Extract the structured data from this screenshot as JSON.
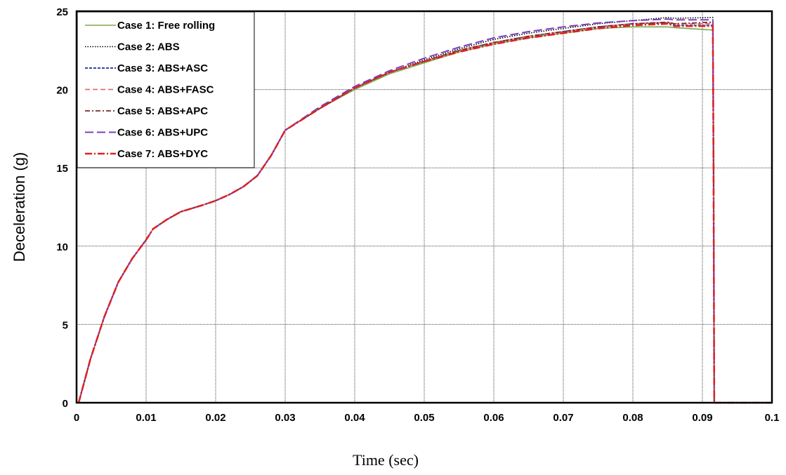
{
  "chart_data": {
    "type": "line",
    "title": "",
    "xlabel": "Time (sec)",
    "ylabel": "Deceleration (g)",
    "xlim": [
      0,
      0.1
    ],
    "ylim": [
      0,
      25
    ],
    "x_ticks": [
      "0",
      "0.01",
      "0.02",
      "0.03",
      "0.04",
      "0.05",
      "0.06",
      "0.07",
      "0.08",
      "0.09",
      "0.1"
    ],
    "y_ticks": [
      "0",
      "5",
      "10",
      "15",
      "20",
      "25"
    ],
    "grid": true,
    "legend_position": "top-left",
    "series": [
      {
        "name": "Case 1: Free rolling",
        "color": "#77a94a",
        "dash": "solid",
        "x": [
          0.0003,
          0.002,
          0.004,
          0.006,
          0.008,
          0.01,
          0.011,
          0.013,
          0.015,
          0.018,
          0.02,
          0.022,
          0.024,
          0.026,
          0.028,
          0.03,
          0.035,
          0.04,
          0.045,
          0.05,
          0.055,
          0.06,
          0.065,
          0.07,
          0.075,
          0.08,
          0.085,
          0.086,
          0.0915,
          0.0916,
          0.0917,
          0.1
        ],
        "y": [
          0,
          2.8,
          5.5,
          7.7,
          9.2,
          10.4,
          11.1,
          11.7,
          12.2,
          12.6,
          12.9,
          13.3,
          13.8,
          14.5,
          15.8,
          17.4,
          18.8,
          20.0,
          21.0,
          21.7,
          22.4,
          22.9,
          23.3,
          23.6,
          23.9,
          24.0,
          24.0,
          23.95,
          23.8,
          15.0,
          0,
          0
        ]
      },
      {
        "name": "Case 2: ABS",
        "color": "#000000",
        "dash": "dotted",
        "x": [
          0.0003,
          0.002,
          0.004,
          0.006,
          0.008,
          0.01,
          0.011,
          0.013,
          0.015,
          0.018,
          0.02,
          0.022,
          0.024,
          0.026,
          0.028,
          0.03,
          0.035,
          0.04,
          0.045,
          0.05,
          0.055,
          0.06,
          0.065,
          0.07,
          0.075,
          0.08,
          0.085,
          0.086,
          0.0915,
          0.0916,
          0.0917,
          0.1
        ],
        "y": [
          0,
          2.8,
          5.5,
          7.7,
          9.2,
          10.4,
          11.1,
          11.7,
          12.2,
          12.6,
          12.9,
          13.3,
          13.8,
          14.5,
          15.8,
          17.4,
          18.8,
          20.1,
          21.1,
          21.9,
          22.6,
          23.2,
          23.6,
          23.9,
          24.2,
          24.4,
          24.6,
          24.55,
          24.6,
          15.0,
          0,
          0
        ]
      },
      {
        "name": "Case 3: ABS+ASC",
        "color": "#2e4aa0",
        "dash": "dashed-short",
        "x": [
          0.0003,
          0.002,
          0.004,
          0.006,
          0.008,
          0.01,
          0.011,
          0.013,
          0.015,
          0.018,
          0.02,
          0.022,
          0.024,
          0.026,
          0.028,
          0.03,
          0.035,
          0.04,
          0.045,
          0.05,
          0.055,
          0.06,
          0.065,
          0.07,
          0.075,
          0.08,
          0.085,
          0.086,
          0.0915,
          0.0916,
          0.0917,
          0.1
        ],
        "y": [
          0,
          2.8,
          5.5,
          7.7,
          9.2,
          10.4,
          11.1,
          11.7,
          12.2,
          12.6,
          12.9,
          13.3,
          13.8,
          14.5,
          15.8,
          17.4,
          18.8,
          20.1,
          21.1,
          21.8,
          22.5,
          23.0,
          23.4,
          23.7,
          24.0,
          24.2,
          24.25,
          24.1,
          24.1,
          15.0,
          0,
          0
        ]
      },
      {
        "name": "Case 4: ABS+FASC",
        "color": "#e07070",
        "dash": "dashed",
        "x": [
          0.0003,
          0.002,
          0.004,
          0.006,
          0.008,
          0.01,
          0.011,
          0.013,
          0.015,
          0.018,
          0.02,
          0.022,
          0.024,
          0.026,
          0.028,
          0.03,
          0.035,
          0.04,
          0.045,
          0.05,
          0.055,
          0.06,
          0.065,
          0.07,
          0.075,
          0.08,
          0.085,
          0.086,
          0.0915,
          0.0916,
          0.0917,
          0.1
        ],
        "y": [
          0,
          2.8,
          5.5,
          7.7,
          9.2,
          10.4,
          11.1,
          11.7,
          12.2,
          12.6,
          12.9,
          13.3,
          13.8,
          14.5,
          15.8,
          17.4,
          18.8,
          20.1,
          21.1,
          21.8,
          22.5,
          23.0,
          23.4,
          23.7,
          24.0,
          24.2,
          24.3,
          24.2,
          24.2,
          15.0,
          0,
          0
        ]
      },
      {
        "name": "Case 5: ABS+APC",
        "color": "#7a2a2a",
        "dash": "dash-dot",
        "x": [
          0.0003,
          0.002,
          0.004,
          0.006,
          0.008,
          0.01,
          0.011,
          0.013,
          0.015,
          0.018,
          0.02,
          0.022,
          0.024,
          0.026,
          0.028,
          0.03,
          0.035,
          0.04,
          0.045,
          0.05,
          0.055,
          0.06,
          0.065,
          0.07,
          0.075,
          0.08,
          0.085,
          0.086,
          0.0915,
          0.0916,
          0.0917,
          0.1
        ],
        "y": [
          0,
          2.8,
          5.5,
          7.7,
          9.2,
          10.4,
          11.1,
          11.7,
          12.2,
          12.6,
          12.9,
          13.3,
          13.8,
          14.5,
          15.8,
          17.4,
          18.8,
          20.1,
          21.1,
          21.8,
          22.5,
          23.0,
          23.4,
          23.7,
          24.0,
          24.2,
          24.3,
          24.2,
          24.3,
          15.0,
          0,
          0
        ]
      },
      {
        "name": "Case 6: ABS+UPC",
        "color": "#7b3fbf",
        "dash": "long-dash",
        "x": [
          0.0003,
          0.002,
          0.004,
          0.006,
          0.008,
          0.01,
          0.011,
          0.013,
          0.015,
          0.018,
          0.02,
          0.022,
          0.024,
          0.026,
          0.028,
          0.03,
          0.035,
          0.04,
          0.045,
          0.05,
          0.055,
          0.06,
          0.065,
          0.07,
          0.075,
          0.08,
          0.085,
          0.086,
          0.0915,
          0.0916,
          0.0917,
          0.1
        ],
        "y": [
          0,
          2.8,
          5.5,
          7.7,
          9.2,
          10.4,
          11.1,
          11.7,
          12.2,
          12.6,
          12.9,
          13.3,
          13.8,
          14.5,
          15.8,
          17.4,
          18.9,
          20.2,
          21.2,
          22.0,
          22.7,
          23.3,
          23.7,
          24.0,
          24.25,
          24.4,
          24.5,
          24.45,
          24.45,
          15.0,
          0,
          0
        ]
      },
      {
        "name": "Case 7: ABS+DYC",
        "color": "#e02020",
        "dash": "dash-dot-bold",
        "x": [
          0.0003,
          0.002,
          0.004,
          0.006,
          0.008,
          0.01,
          0.011,
          0.013,
          0.015,
          0.018,
          0.02,
          0.022,
          0.024,
          0.026,
          0.028,
          0.03,
          0.035,
          0.04,
          0.045,
          0.05,
          0.055,
          0.06,
          0.065,
          0.07,
          0.075,
          0.08,
          0.085,
          0.086,
          0.0915,
          0.0916,
          0.0917,
          0.1
        ],
        "y": [
          0,
          2.8,
          5.5,
          7.7,
          9.2,
          10.4,
          11.1,
          11.7,
          12.2,
          12.6,
          12.9,
          13.3,
          13.8,
          14.5,
          15.8,
          17.4,
          18.8,
          20.1,
          21.1,
          21.8,
          22.4,
          22.9,
          23.3,
          23.6,
          23.9,
          24.1,
          24.2,
          24.05,
          24.05,
          15.0,
          0,
          0
        ]
      }
    ]
  }
}
